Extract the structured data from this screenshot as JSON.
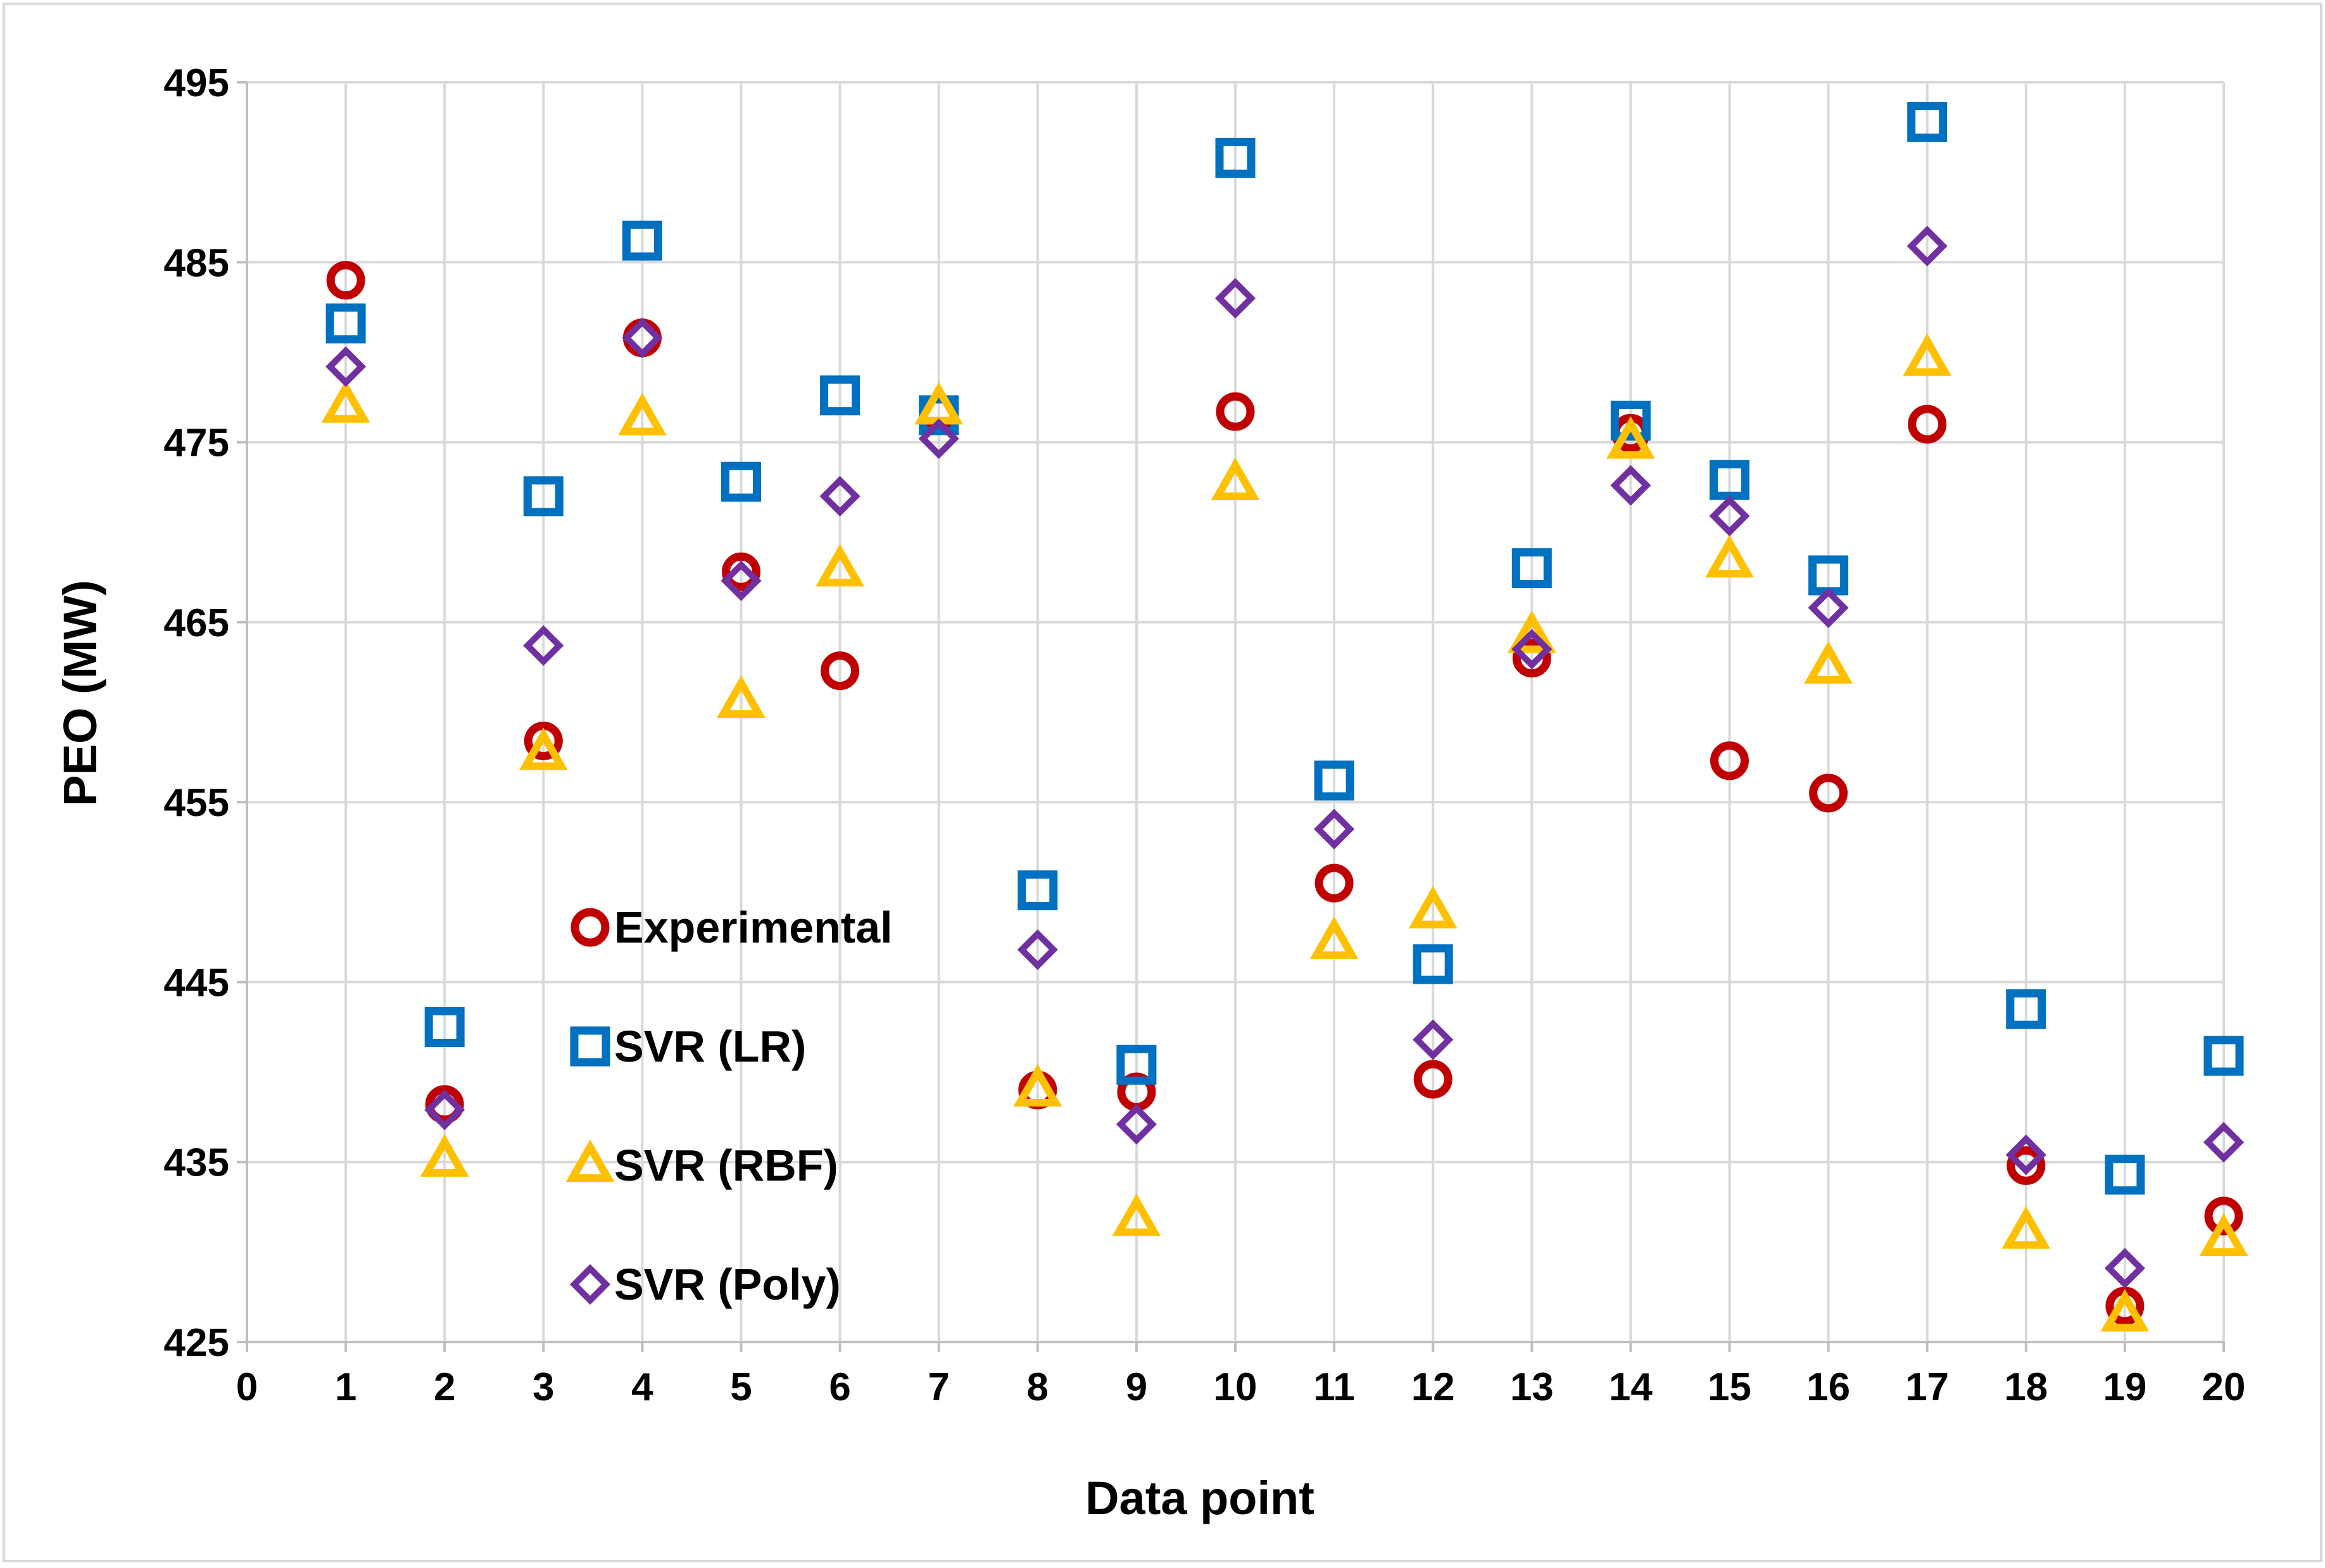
{
  "chart_data": {
    "type": "scatter",
    "title": "",
    "xlabel": "Data point",
    "ylabel": "PEO (MW)",
    "xlim": [
      0,
      20
    ],
    "ylim": [
      425,
      495
    ],
    "xticks": [
      "0",
      "1",
      "2",
      "3",
      "4",
      "5",
      "6",
      "7",
      "8",
      "9",
      "10",
      "11",
      "12",
      "13",
      "14",
      "15",
      "16",
      "17",
      "18",
      "19",
      "20"
    ],
    "yticks": [
      "425",
      "435",
      "445",
      "455",
      "465",
      "475",
      "485",
      "495"
    ],
    "grid": true,
    "legend_position": "inside-left",
    "x": [
      1,
      2,
      3,
      4,
      5,
      6,
      7,
      8,
      9,
      10,
      11,
      12,
      13,
      14,
      15,
      16,
      17,
      18,
      19,
      20
    ],
    "series": [
      {
        "name": "Experimental",
        "marker": "circle",
        "color": "#C00000",
        "values": [
          484.0,
          438.2,
          458.4,
          480.8,
          467.8,
          462.3,
          476.6,
          439.0,
          438.9,
          476.7,
          450.5,
          439.6,
          463.0,
          475.5,
          457.3,
          455.5,
          476.0,
          434.8,
          427.0,
          432.0
        ]
      },
      {
        "name": "SVR (LR)",
        "marker": "square",
        "color": "#0070C0",
        "values": [
          481.6,
          442.5,
          472.0,
          486.2,
          472.8,
          477.6,
          476.5,
          450.1,
          440.4,
          490.8,
          456.2,
          446.0,
          468.0,
          476.2,
          472.9,
          467.6,
          492.8,
          443.5,
          434.3,
          440.9
        ]
      },
      {
        "name": "SVR (RBF)",
        "marker": "triangle",
        "color": "#FFC000",
        "values": [
          477.0,
          435.1,
          457.7,
          476.3,
          460.6,
          467.9,
          476.9,
          439.0,
          431.8,
          472.7,
          447.2,
          448.9,
          464.2,
          475.0,
          468.4,
          462.5,
          479.6,
          431.1,
          426.5,
          430.7
        ]
      },
      {
        "name": "SVR (Poly)",
        "marker": "diamond",
        "color": "#7030A0",
        "values": [
          479.2,
          437.9,
          463.7,
          480.8,
          467.3,
          472.0,
          475.2,
          446.8,
          437.1,
          483.0,
          453.5,
          441.8,
          463.5,
          472.6,
          470.9,
          465.8,
          485.9,
          435.4,
          429.1,
          436.1
        ]
      }
    ]
  }
}
